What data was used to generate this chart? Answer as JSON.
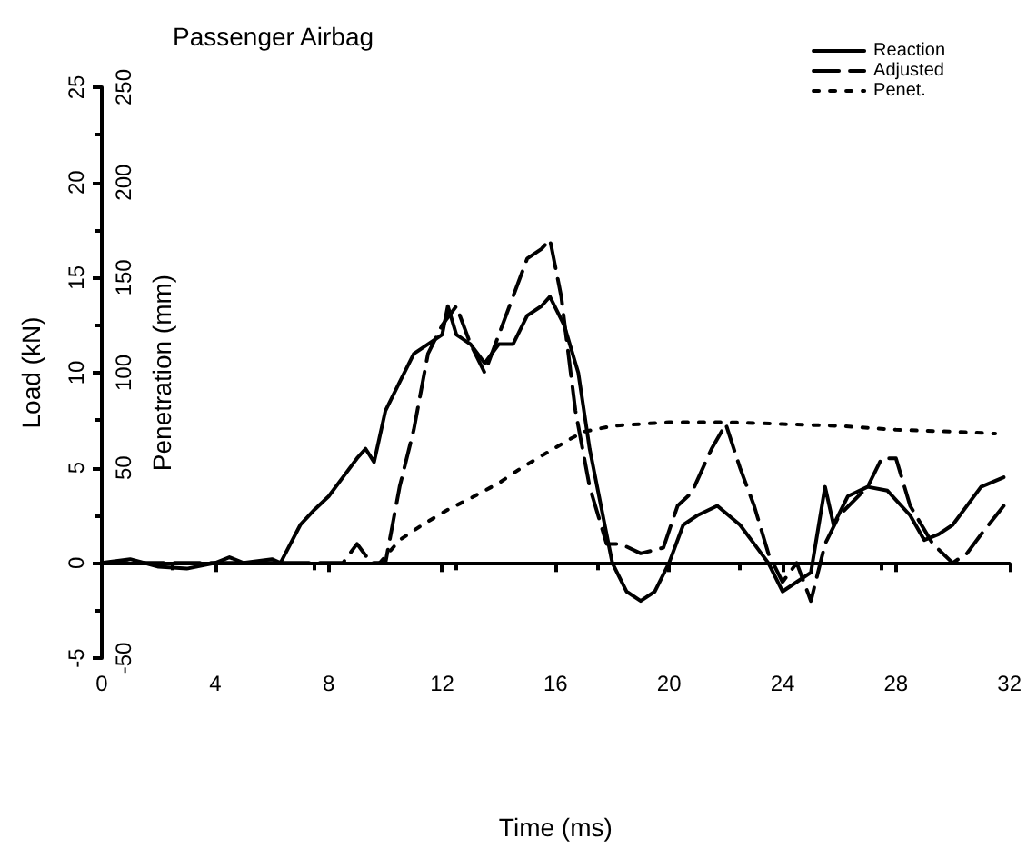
{
  "chart_data": {
    "type": "line",
    "title": "Passenger Airbag",
    "xlabel": "Time (ms)",
    "ylabel": "Load (kN)",
    "y2label": "Penetration (mm)",
    "xlim": [
      0,
      32
    ],
    "xticks": [
      0,
      4,
      8,
      12,
      16,
      20,
      24,
      28,
      32
    ],
    "ylim": [
      -5,
      25
    ],
    "yticks": [
      -5,
      0,
      5,
      10,
      15,
      20,
      25
    ],
    "y2lim": [
      -50,
      250
    ],
    "y2ticks": [
      -50,
      50,
      100,
      150,
      200,
      250
    ],
    "legend": "top right",
    "marker": "none",
    "series": [
      {
        "name": "Reaction",
        "color": "#000000",
        "line_style": "solid",
        "x": [
          0,
          1,
          2,
          3,
          4,
          4.5,
          5,
          6,
          6.3,
          7,
          7.5,
          8,
          8.5,
          9,
          9.3,
          9.6,
          10,
          10.5,
          11,
          11.5,
          12,
          12.2,
          12.5,
          13,
          13.5,
          14,
          14.5,
          15,
          15.5,
          15.8,
          16.3,
          16.8,
          17.2,
          17.6,
          18,
          18.5,
          19,
          19.5,
          20,
          20.5,
          21,
          21.7,
          22.5,
          23,
          23.5,
          24,
          24.5,
          25,
          25.5,
          25.8,
          26.3,
          27,
          27.7,
          28.5,
          29,
          29.5,
          30,
          31,
          31.8
        ],
        "values": [
          0,
          0.2,
          -0.2,
          -0.3,
          0,
          0.3,
          0,
          0.2,
          0,
          2,
          2.8,
          3.5,
          4.5,
          5.5,
          6,
          5.3,
          8,
          9.5,
          11,
          11.5,
          12,
          13.5,
          12,
          11.5,
          10.5,
          11.5,
          11.5,
          13,
          13.5,
          14,
          12.5,
          10,
          6,
          3,
          0,
          -1.5,
          -2,
          -1.5,
          0,
          2,
          2.5,
          3,
          2,
          1,
          0,
          -1.5,
          -1,
          -0.5,
          4,
          2,
          3.5,
          4,
          3.8,
          2.5,
          1.2,
          1.5,
          2,
          4,
          4.5
        ]
      },
      {
        "name": "Adjusted",
        "color": "#000000",
        "line_style": "dashed",
        "x": [
          0,
          8,
          8.5,
          9,
          9.5,
          10,
          10.5,
          11,
          11.5,
          12,
          12.5,
          13,
          13.5,
          14,
          14.5,
          15,
          15.5,
          15.8,
          16.2,
          16.7,
          17.2,
          17.8,
          18.3,
          19,
          19.8,
          20.3,
          20.8,
          21.5,
          22,
          22.5,
          23,
          23.5,
          24,
          24.5,
          25,
          25.5,
          26,
          27,
          27.5,
          28,
          28.5,
          29.3,
          30,
          30.5,
          31,
          31.8
        ],
        "values": [
          0,
          0,
          0,
          1,
          0,
          0,
          4,
          7,
          11,
          12.5,
          13.5,
          11.5,
          10,
          12,
          14,
          16,
          16.5,
          17,
          14,
          8,
          4,
          1,
          1,
          0.5,
          0.8,
          3,
          3.7,
          6,
          7.3,
          5,
          3,
          0.5,
          -1,
          0,
          -2,
          1,
          2.5,
          4,
          5.5,
          5.5,
          3,
          1,
          0,
          0.5,
          1.5,
          3
        ]
      },
      {
        "name": "Penet.",
        "color": "#000000",
        "line_style": "dotted",
        "axis": "y2",
        "x": [
          9.8,
          10.5,
          11.3,
          12.2,
          13,
          14,
          14.8,
          15.7,
          16.5,
          17,
          18,
          20,
          22,
          24,
          26,
          28,
          30,
          31.5
        ],
        "values": [
          0,
          12,
          20,
          28,
          34,
          42,
          50,
          58,
          65,
          69,
          72,
          74,
          74,
          73,
          72,
          70,
          69,
          68
        ]
      }
    ]
  }
}
